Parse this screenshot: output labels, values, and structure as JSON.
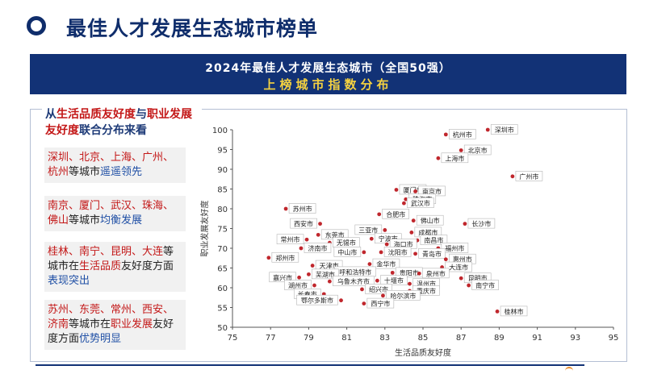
{
  "header": {
    "title": "最佳人才发展生态城市榜单"
  },
  "banner": {
    "line1": "2024年最佳人才发展生态城市（全国50强）",
    "line2": "上榜城市指数分布"
  },
  "sidebar": {
    "heading": [
      {
        "text": "从",
        "style": "dark"
      },
      {
        "text": "生活品质友好度",
        "style": "red"
      },
      {
        "text": "与",
        "style": "dark"
      },
      {
        "text": "职业发展友好度",
        "style": "red"
      },
      {
        "text": "联合分布来看",
        "style": "dark"
      }
    ],
    "cards": [
      [
        {
          "text": "深圳、北京、上海、广州、杭州",
          "style": "r"
        },
        {
          "text": "等城市",
          "style": "n"
        },
        {
          "text": "遥遥领先",
          "style": "b"
        }
      ],
      [
        {
          "text": "南京、厦门、武汉、珠海、佛山",
          "style": "r"
        },
        {
          "text": "等城市",
          "style": "n"
        },
        {
          "text": "均衡发展",
          "style": "b"
        }
      ],
      [
        {
          "text": "桂林、南宁、昆明、大连",
          "style": "r"
        },
        {
          "text": "等城市在",
          "style": "n"
        },
        {
          "text": "生活品质",
          "style": "r"
        },
        {
          "text": "友好度方面",
          "style": "n"
        },
        {
          "text": "表现突出",
          "style": "b"
        }
      ],
      [
        {
          "text": "苏州、东莞、常州、西安、济南",
          "style": "r"
        },
        {
          "text": "等城市在",
          "style": "n"
        },
        {
          "text": "职业发展",
          "style": "r"
        },
        {
          "text": "友好度方面",
          "style": "n"
        },
        {
          "text": "优势明显",
          "style": "b"
        }
      ]
    ]
  },
  "colors": {
    "navy": "#123276",
    "point": "#c0272d",
    "highlight": "#f5d240",
    "red_text": "#c31717",
    "blue_text": "#1f4fa5"
  },
  "chart_data": {
    "type": "scatter",
    "xlabel": "生活品质友好度",
    "ylabel": "职业发展友好度",
    "xlim": [
      75,
      95
    ],
    "ylim": [
      50,
      100
    ],
    "xticks": [
      75,
      77,
      79,
      81,
      83,
      85,
      87,
      89,
      91,
      93,
      95
    ],
    "yticks": [
      50,
      55,
      60,
      65,
      70,
      75,
      80,
      85,
      90,
      95,
      100
    ],
    "grid": false,
    "points": [
      {
        "name": "深圳市",
        "x": 88.4,
        "y": 100,
        "label_side": "right"
      },
      {
        "name": "杭州市",
        "x": 86.2,
        "y": 98.8,
        "label_side": "right"
      },
      {
        "name": "北京市",
        "x": 87.0,
        "y": 94.8,
        "label_side": "right"
      },
      {
        "name": "上海市",
        "x": 85.8,
        "y": 92.8,
        "label_side": "right"
      },
      {
        "name": "广州市",
        "x": 89.7,
        "y": 88.2,
        "label_side": "right"
      },
      {
        "name": "厦门市",
        "x": 83.6,
        "y": 84.8,
        "label_side": "right"
      },
      {
        "name": "南京市",
        "x": 84.6,
        "y": 84.4,
        "label_side": "right"
      },
      {
        "name": "珠海市",
        "x": 84.1,
        "y": 82.4,
        "label_side": "right"
      },
      {
        "name": "武汉市",
        "x": 84.0,
        "y": 81.4,
        "label_side": "right"
      },
      {
        "name": "苏州市",
        "x": 77.8,
        "y": 80.0,
        "label_side": "right"
      },
      {
        "name": "合肥市",
        "x": 82.7,
        "y": 78.6,
        "label_side": "right"
      },
      {
        "name": "佛山市",
        "x": 84.5,
        "y": 77.0,
        "label_side": "right"
      },
      {
        "name": "长沙市",
        "x": 87.2,
        "y": 76.2,
        "label_side": "right"
      },
      {
        "name": "西安市",
        "x": 79.6,
        "y": 76.2,
        "label_side": "left"
      },
      {
        "name": "三亚市",
        "x": 83.0,
        "y": 74.6,
        "label_side": "left"
      },
      {
        "name": "成都市",
        "x": 84.4,
        "y": 74.0,
        "label_side": "right"
      },
      {
        "name": "东莞市",
        "x": 79.5,
        "y": 73.4,
        "label_side": "right"
      },
      {
        "name": "常州市",
        "x": 78.9,
        "y": 72.2,
        "label_side": "left"
      },
      {
        "name": "宁波市",
        "x": 82.3,
        "y": 72.4,
        "label_side": "right"
      },
      {
        "name": "南昌市",
        "x": 84.7,
        "y": 72.0,
        "label_side": "right"
      },
      {
        "name": "无锡市",
        "x": 80.1,
        "y": 71.4,
        "label_side": "right"
      },
      {
        "name": "海口市",
        "x": 83.1,
        "y": 71.0,
        "label_side": "right"
      },
      {
        "name": "济南市",
        "x": 78.6,
        "y": 70.0,
        "label_side": "right"
      },
      {
        "name": "福州市",
        "x": 85.8,
        "y": 70.0,
        "label_side": "right"
      },
      {
        "name": "中山市",
        "x": 81.9,
        "y": 69.0,
        "label_side": "left"
      },
      {
        "name": "沈阳市",
        "x": 82.8,
        "y": 69.0,
        "label_side": "right"
      },
      {
        "name": "青岛市",
        "x": 84.6,
        "y": 68.6,
        "label_side": "right"
      },
      {
        "name": "郑州市",
        "x": 76.9,
        "y": 67.6,
        "label_side": "right"
      },
      {
        "name": "惠州市",
        "x": 86.2,
        "y": 67.2,
        "label_side": "right"
      },
      {
        "name": "金华市",
        "x": 82.2,
        "y": 66.0,
        "label_side": "right"
      },
      {
        "name": "天津市",
        "x": 79.2,
        "y": 65.6,
        "label_side": "right"
      },
      {
        "name": "大连市",
        "x": 86.0,
        "y": 65.2,
        "label_side": "right"
      },
      {
        "name": "呼和浩特市",
        "x": 80.2,
        "y": 64.0,
        "label_side": "right"
      },
      {
        "name": "贵阳市",
        "x": 83.4,
        "y": 63.8,
        "label_side": "right"
      },
      {
        "name": "泉州市",
        "x": 84.8,
        "y": 63.6,
        "label_side": "right"
      },
      {
        "name": "芜湖市",
        "x": 79.0,
        "y": 63.4,
        "label_side": "right"
      },
      {
        "name": "嘉兴市",
        "x": 78.5,
        "y": 62.6,
        "label_side": "left"
      },
      {
        "name": "昆明市",
        "x": 87.0,
        "y": 62.4,
        "label_side": "right"
      },
      {
        "name": "十堰市",
        "x": 82.6,
        "y": 61.8,
        "label_side": "right"
      },
      {
        "name": "乌鲁木齐市",
        "x": 80.1,
        "y": 61.6,
        "label_side": "right"
      },
      {
        "name": "温州市",
        "x": 84.3,
        "y": 61.0,
        "label_side": "right"
      },
      {
        "name": "南宁市",
        "x": 87.4,
        "y": 60.6,
        "label_side": "right"
      },
      {
        "name": "湖州市",
        "x": 79.3,
        "y": 60.6,
        "label_side": "left"
      },
      {
        "name": "绍兴市",
        "x": 81.8,
        "y": 59.6,
        "label_side": "right"
      },
      {
        "name": "重庆市",
        "x": 84.3,
        "y": 59.2,
        "label_side": "right"
      },
      {
        "name": "长春市",
        "x": 79.8,
        "y": 58.4,
        "label_side": "left"
      },
      {
        "name": "哈尔滨市",
        "x": 82.9,
        "y": 58.0,
        "label_side": "right"
      },
      {
        "name": "鄂尔多斯市",
        "x": 80.7,
        "y": 56.8,
        "label_side": "left"
      },
      {
        "name": "西宁市",
        "x": 81.9,
        "y": 56.0,
        "label_side": "right"
      },
      {
        "name": "桂林市",
        "x": 88.9,
        "y": 54.0,
        "label_side": "right"
      }
    ]
  }
}
